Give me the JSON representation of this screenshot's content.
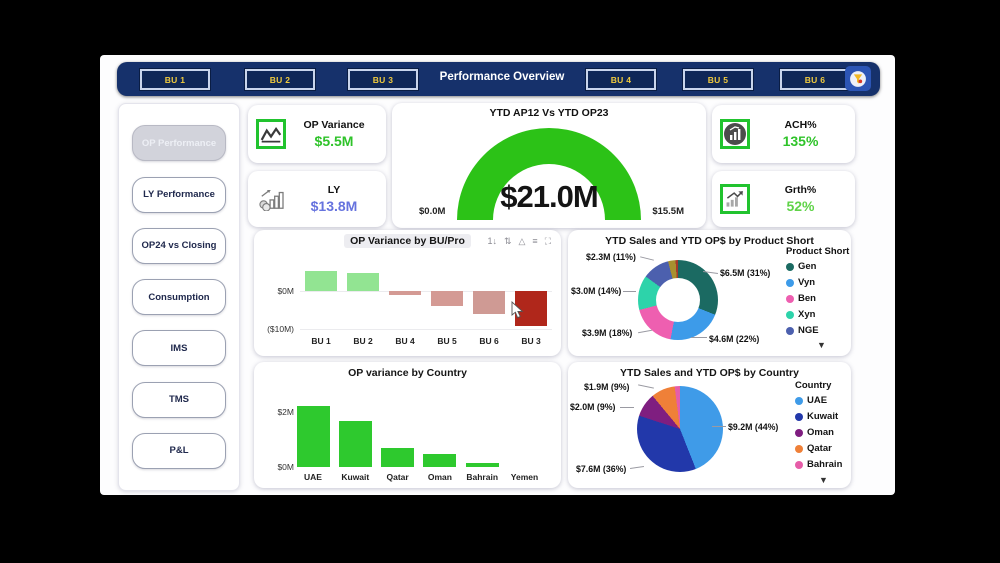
{
  "header": {
    "title": "Performance Overview",
    "bu_buttons": [
      {
        "label": "BU 1"
      },
      {
        "label": "BU 2"
      },
      {
        "label": "BU 3"
      },
      {
        "label": "BU 4"
      },
      {
        "label": "BU 5"
      },
      {
        "label": "BU 6"
      }
    ],
    "logo_icon": "globe-funnel-logo"
  },
  "sidebar": {
    "items": [
      {
        "label": "OP Performance",
        "selected": true
      },
      {
        "label": "LY Performance",
        "selected": false
      },
      {
        "label": "OP24 vs Closing",
        "selected": false
      },
      {
        "label": "Consumption",
        "selected": false
      },
      {
        "label": "IMS",
        "selected": false
      },
      {
        "label": "TMS",
        "selected": false
      },
      {
        "label": "P&L",
        "selected": false
      }
    ]
  },
  "kpis": [
    {
      "title": "OP Variance",
      "value": "$5.5M",
      "value_color": "#2fc32a",
      "icon": "line-chart-icon"
    },
    {
      "title": "LY",
      "value": "$13.8M",
      "value_color": "#6673de",
      "icon": "coins-growth-icon"
    },
    {
      "title": "ACH%",
      "value": "135%",
      "value_color": "#2fc32a",
      "icon": "achievement-icon"
    },
    {
      "title": "Grth%",
      "value": "52%",
      "value_color": "#5fd348",
      "icon": "growth-arrow-icon"
    }
  ],
  "gauge": {
    "title": "YTD AP12 Vs YTD OP23",
    "value": "$21.0M",
    "min": "$0.0M",
    "max": "$15.5M",
    "arc_color": "#2cc217"
  },
  "chart_data": [
    {
      "type": "bar",
      "title": "OP Variance by BU/Pro",
      "categories": [
        "BU 1",
        "BU 2",
        "BU 4",
        "BU 5",
        "BU 6",
        "BU 3"
      ],
      "values": [
        5.2,
        4.7,
        -1.0,
        -3.9,
        -6.0,
        -9.0
      ],
      "unit": "$M",
      "yticks": [
        "$0M",
        "($10M)"
      ],
      "ylim": [
        -10,
        5.5
      ],
      "bar_colors": [
        "#92e492",
        "#92e492",
        "#d49a94",
        "#d49a94",
        "#cf9a94",
        "#b0271b"
      ],
      "toolbar_icons": [
        {
          "name": "sort-numeric-icon",
          "glyph": "1↓"
        },
        {
          "name": "sort-axis-icon",
          "glyph": "⇅"
        },
        {
          "name": "pyramid-icon",
          "glyph": "△"
        },
        {
          "name": "filter-lines-icon",
          "glyph": "≡"
        },
        {
          "name": "focus-mode-icon",
          "glyph": "⛶"
        }
      ]
    },
    {
      "type": "donut",
      "title": "YTD Sales and YTD OP$ by Product Short",
      "legend_title": "Product Short",
      "legend_position": "right",
      "slices": [
        {
          "name": "Gen",
          "label": "$6.5M (31%)",
          "pct": 31,
          "color": "#1b6a62"
        },
        {
          "name": "Vyn",
          "label": "$4.6M (22%)",
          "pct": 22,
          "color": "#3d9be9"
        },
        {
          "name": "Ben",
          "label": "$3.9M (18%)",
          "pct": 18,
          "color": "#ee5fb0"
        },
        {
          "name": "Xyn",
          "label": "$3.0M (14%)",
          "pct": 14,
          "color": "#2dd3aa"
        },
        {
          "name": "NGE",
          "label": "$2.3M (11%)",
          "pct": 11,
          "color": "#4c60ae"
        },
        {
          "name": "",
          "pct": 3,
          "color": "#a8912f"
        },
        {
          "name": "",
          "pct": 1,
          "color": "#a63a2b"
        }
      ]
    },
    {
      "type": "bar",
      "title": "OP variance by Country",
      "categories": [
        "UAE",
        "Kuwait",
        "Qatar",
        "Oman",
        "Bahrain",
        "Yemen"
      ],
      "values": [
        2.2,
        1.65,
        0.7,
        0.45,
        0.15,
        0
      ],
      "unit": "$M",
      "yticks": [
        "$2M",
        "$0M"
      ],
      "ylim": [
        0,
        2.5
      ],
      "bar_color": "#2ec92e"
    },
    {
      "type": "pie",
      "title": "YTD Sales and YTD OP$ by Country",
      "legend_title": "Country",
      "legend_position": "right",
      "slices": [
        {
          "name": "UAE",
          "label": "$9.2M (44%)",
          "pct": 44,
          "color": "#3f9be8"
        },
        {
          "name": "Kuwait",
          "label": "$7.6M (36%)",
          "pct": 36,
          "color": "#2238aa"
        },
        {
          "name": "Oman",
          "label": "$2.0M (9%)",
          "pct": 9,
          "color": "#7f1e80"
        },
        {
          "name": "Qatar",
          "label": "$1.9M (9%)",
          "pct": 9,
          "color": "#ef8038"
        },
        {
          "name": "Bahrain",
          "pct": 2,
          "color": "#e65da8"
        }
      ]
    }
  ]
}
